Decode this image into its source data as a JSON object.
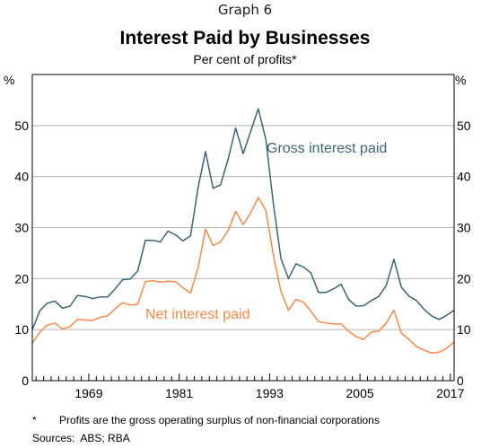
{
  "header": {
    "graph_label": "Graph 6",
    "title": "Interest Paid by Businesses",
    "subtitle": "Per cent of profits*",
    "unit_left": "%",
    "unit_right": "%"
  },
  "footer": {
    "footnote_mark": "*",
    "footnote_text": "Profits are the gross operating surplus of non-financial corporations",
    "sources_label": "Sources:",
    "sources_text": "ABS; RBA"
  },
  "colors": {
    "gross": "#3c6470",
    "net": "#f7894b",
    "axis": "#000000",
    "grid": "#b4b4b4"
  },
  "chart_data": {
    "type": "line",
    "title": "Interest Paid by Businesses",
    "subtitle": "Per cent of profits*",
    "ylabel": "%",
    "ylim": [
      0,
      60
    ],
    "yticks": [
      0,
      10,
      20,
      30,
      40,
      50
    ],
    "xlim": [
      1961.5,
      2017.5
    ],
    "xticks": [
      1969,
      1981,
      1993,
      2005,
      2017
    ],
    "grid": true,
    "series": [
      {
        "name": "Gross interest paid",
        "color": "#3c6470",
        "x": [
          1961.5,
          1962.5,
          1963.5,
          1964.5,
          1965.5,
          1966.5,
          1967.5,
          1968.5,
          1969.5,
          1970.5,
          1971.5,
          1972.5,
          1973.5,
          1974.5,
          1975.5,
          1976.5,
          1977.5,
          1978.5,
          1979.5,
          1980.5,
          1981.5,
          1982.5,
          1983.5,
          1984.5,
          1985.5,
          1986.5,
          1987.5,
          1988.5,
          1989.5,
          1990.5,
          1991.5,
          1992.5,
          1993.5,
          1994.5,
          1995.5,
          1996.5,
          1997.5,
          1998.5,
          1999.5,
          2000.5,
          2001.5,
          2002.5,
          2003.5,
          2004.5,
          2005.5,
          2006.5,
          2007.5,
          2008.5,
          2009.5,
          2010.5,
          2011.5,
          2012.5,
          2013.5,
          2014.5,
          2015.5,
          2016.5,
          2017.5
        ],
        "values": [
          10.0,
          13.7,
          15.2,
          15.6,
          14.2,
          14.6,
          16.7,
          16.5,
          16.1,
          16.4,
          16.4,
          18.0,
          19.8,
          19.9,
          21.5,
          27.5,
          27.5,
          27.2,
          29.3,
          28.6,
          27.4,
          28.4,
          37.7,
          44.9,
          37.7,
          38.4,
          43.4,
          49.5,
          44.5,
          48.9,
          53.3,
          47.3,
          34.7,
          24.0,
          20.0,
          22.9,
          22.3,
          21.1,
          17.3,
          17.3,
          18.0,
          18.9,
          15.9,
          14.6,
          14.7,
          15.7,
          16.5,
          18.7,
          23.8,
          18.3,
          16.6,
          15.7,
          14.0,
          12.7,
          12.0,
          12.8,
          13.8
        ]
      },
      {
        "name": "Net interest paid",
        "color": "#f7894b",
        "x": [
          1961.5,
          1962.5,
          1963.5,
          1964.5,
          1965.5,
          1966.5,
          1967.5,
          1968.5,
          1969.5,
          1970.5,
          1971.5,
          1972.5,
          1973.5,
          1974.5,
          1975.5,
          1976.5,
          1977.5,
          1978.5,
          1979.5,
          1980.5,
          1981.5,
          1982.5,
          1983.5,
          1984.5,
          1985.5,
          1986.5,
          1987.5,
          1988.5,
          1989.5,
          1990.5,
          1991.5,
          1992.5,
          1993.5,
          1994.5,
          1995.5,
          1996.5,
          1997.5,
          1998.5,
          1999.5,
          2000.5,
          2001.5,
          2002.5,
          2003.5,
          2004.5,
          2005.5,
          2006.5,
          2007.5,
          2008.5,
          2009.5,
          2010.5,
          2011.5,
          2012.5,
          2013.5,
          2014.5,
          2015.5,
          2016.5,
          2017.5
        ],
        "values": [
          7.4,
          9.5,
          10.9,
          11.3,
          10.1,
          10.6,
          12.0,
          11.9,
          11.8,
          12.4,
          12.7,
          14.1,
          15.3,
          14.8,
          15.0,
          19.4,
          19.6,
          19.3,
          19.5,
          19.4,
          18.2,
          17.2,
          22.0,
          29.7,
          26.5,
          27.2,
          29.4,
          33.2,
          30.6,
          32.9,
          35.9,
          33.4,
          24.6,
          17.5,
          13.8,
          15.9,
          15.4,
          13.6,
          11.6,
          11.3,
          11.1,
          11.1,
          9.7,
          8.6,
          8.1,
          9.5,
          9.7,
          11.3,
          13.8,
          9.3,
          8.1,
          6.7,
          6.0,
          5.4,
          5.6,
          6.3,
          7.6
        ]
      }
    ],
    "annotations": [
      {
        "text": "Gross interest paid",
        "series": "Gross interest paid"
      },
      {
        "text": "Net interest paid",
        "series": "Net interest paid"
      }
    ]
  }
}
